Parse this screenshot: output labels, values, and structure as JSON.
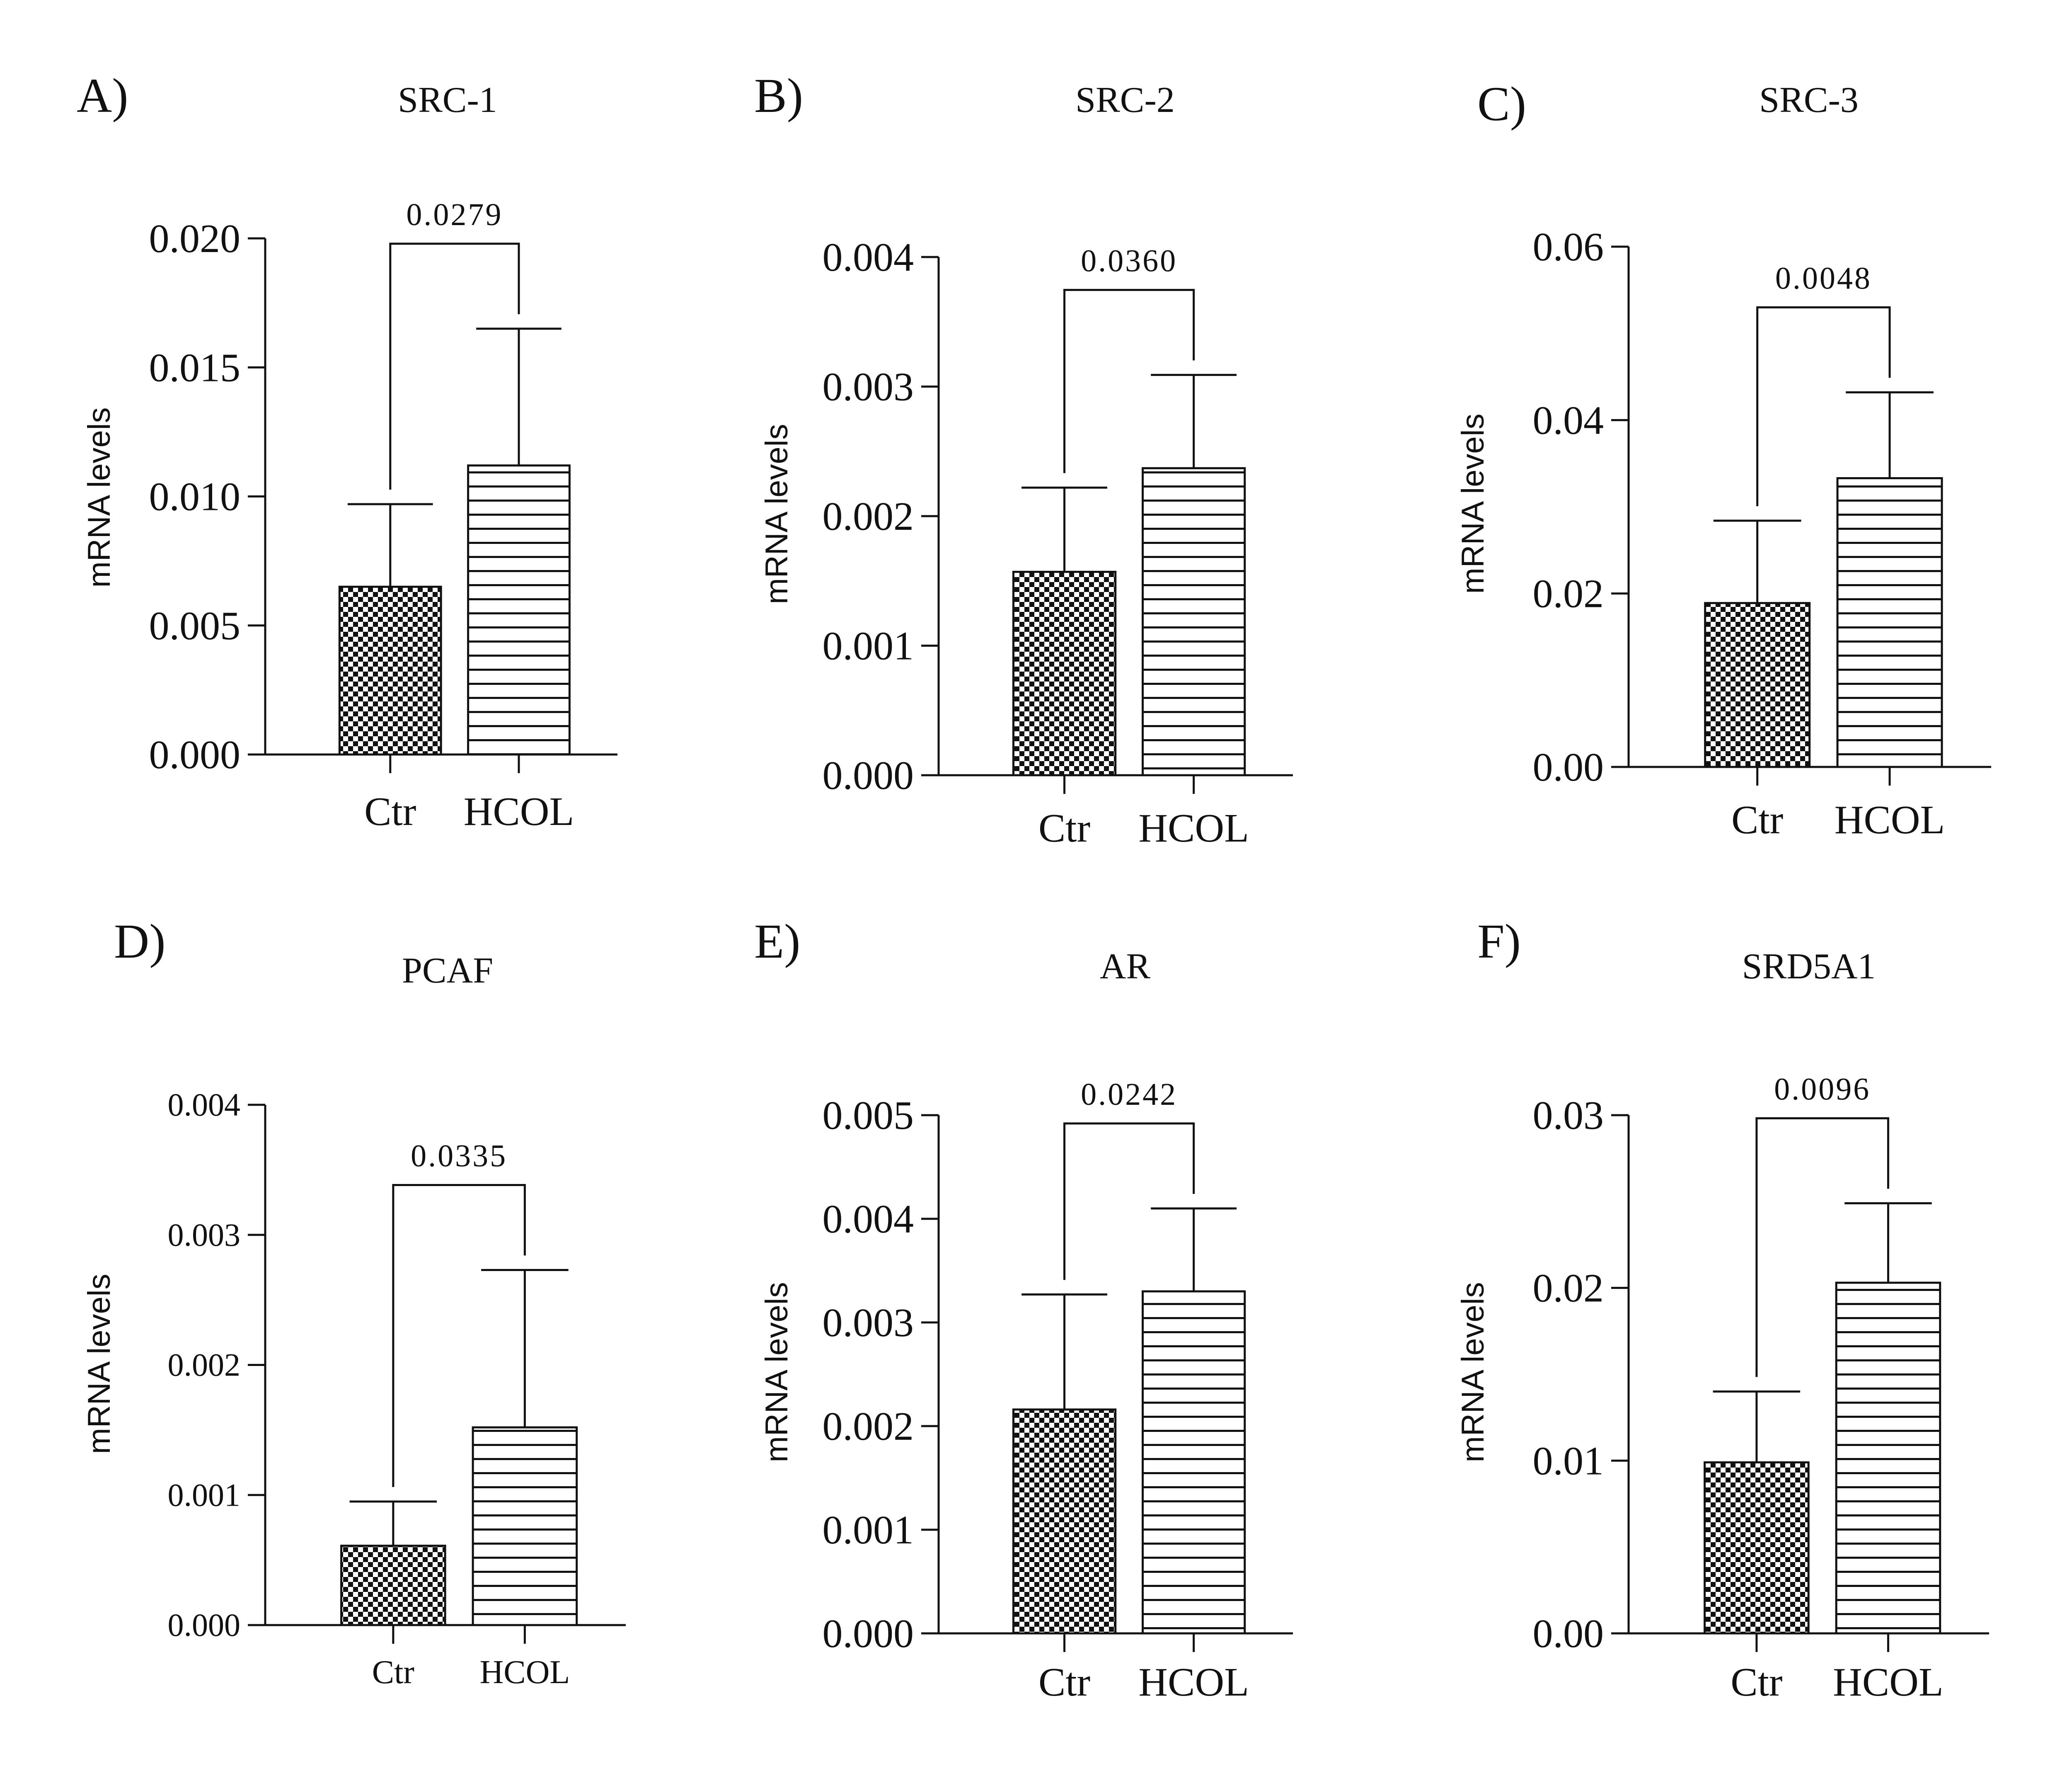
{
  "chart_data": [
    {
      "type": "bar",
      "panel_label": "A)",
      "title": "SRC-1",
      "ylabel": "mRNA levels",
      "categories": [
        "Ctr",
        "HCOL"
      ],
      "values": [
        0.0065,
        0.0112
      ],
      "errors": [
        0.0032,
        0.0053
      ],
      "ylim": [
        0,
        0.02
      ],
      "yticks": [
        "0.000",
        "0.005",
        "0.010",
        "0.015",
        "0.020"
      ],
      "p_value": "0.0279",
      "patterns": [
        "checker",
        "horizontal-stripes"
      ],
      "grid": false
    },
    {
      "type": "bar",
      "panel_label": "B)",
      "title": "SRC-2",
      "ylabel": "mRNA levels",
      "categories": [
        "Ctr",
        "HCOL"
      ],
      "values": [
        0.00157,
        0.00237
      ],
      "errors": [
        0.00065,
        0.00072
      ],
      "ylim": [
        0,
        0.004
      ],
      "yticks": [
        "0.000",
        "0.001",
        "0.002",
        "0.003",
        "0.004"
      ],
      "p_value": "0.0360",
      "patterns": [
        "checker",
        "horizontal-stripes"
      ],
      "grid": false
    },
    {
      "type": "bar",
      "panel_label": "C)",
      "title": "SRC-3",
      "ylabel": "mRNA levels",
      "categories": [
        "Ctr",
        "HCOL"
      ],
      "values": [
        0.0189,
        0.0333
      ],
      "errors": [
        0.0095,
        0.0099
      ],
      "ylim": [
        0,
        0.06
      ],
      "yticks": [
        "0.00",
        "0.02",
        "0.04",
        "0.06"
      ],
      "p_value": "0.0048",
      "patterns": [
        "checker",
        "horizontal-stripes"
      ],
      "grid": false
    },
    {
      "type": "bar",
      "panel_label": "D)",
      "title": "PCAF",
      "ylabel": "mRNA levels",
      "categories": [
        "Ctr",
        "HCOL"
      ],
      "values": [
        0.00061,
        0.00152
      ],
      "errors": [
        0.00034,
        0.00121
      ],
      "ylim": [
        0,
        0.004
      ],
      "yticks": [
        "0.000",
        "0.001",
        "0.002",
        "0.003",
        "0.004"
      ],
      "p_value": "0.0335",
      "patterns": [
        "checker",
        "horizontal-stripes"
      ],
      "grid": false
    },
    {
      "type": "bar",
      "panel_label": "E)",
      "title": "AR",
      "ylabel": "mRNA levels",
      "categories": [
        "Ctr",
        "HCOL"
      ],
      "values": [
        0.00216,
        0.0033
      ],
      "errors": [
        0.00111,
        0.0008
      ],
      "ylim": [
        0,
        0.005
      ],
      "yticks": [
        "0.000",
        "0.001",
        "0.002",
        "0.003",
        "0.004",
        "0.005"
      ],
      "p_value": "0.0242",
      "patterns": [
        "checker",
        "horizontal-stripes"
      ],
      "grid": false
    },
    {
      "type": "bar",
      "panel_label": "F)",
      "title": "SRD5A1",
      "ylabel": "mRNA levels",
      "categories": [
        "Ctr",
        "HCOL"
      ],
      "values": [
        0.0099,
        0.0203
      ],
      "errors": [
        0.0041,
        0.0046
      ],
      "ylim": [
        0,
        0.03
      ],
      "yticks": [
        "0.00",
        "0.01",
        "0.02",
        "0.03"
      ],
      "p_value": "0.0096",
      "patterns": [
        "checker",
        "horizontal-stripes"
      ],
      "grid": false
    }
  ]
}
